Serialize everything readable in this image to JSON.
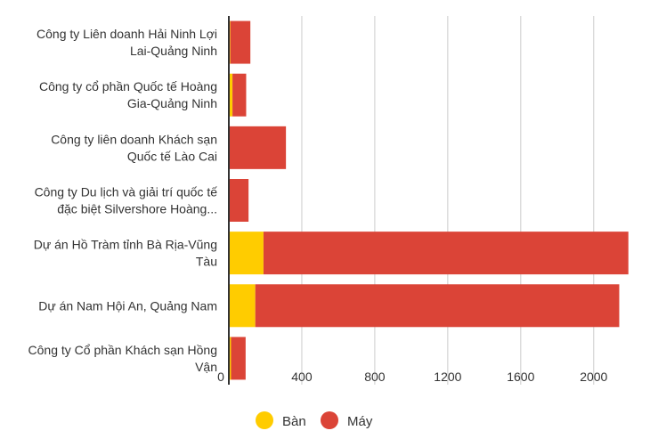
{
  "chart_data": {
    "type": "bar",
    "orientation": "horizontal",
    "stacked": true,
    "categories": [
      [
        "Công ty Liên doanh Hải Ninh Lợi",
        "Lai-Quảng Ninh"
      ],
      [
        "Công ty cổ phần Quốc tế Hoàng",
        "Gia-Quảng Ninh"
      ],
      [
        "Công ty liên doanh Khách sạn",
        "Quốc tế Lào Cai"
      ],
      [
        "Công ty Du lịch và giải trí quốc tế",
        "đặc biệt Silvershore Hoàng..."
      ],
      [
        "Dự án Hồ Tràm tỉnh Bà Rịa-Vũng",
        "Tàu"
      ],
      [
        "Dự án Nam Hội An, Quảng Nam"
      ],
      [
        "Công ty Cổ phần Khách sạn Hồng",
        "Vận"
      ]
    ],
    "series": [
      {
        "name": "Bàn",
        "color": "#FFCC00",
        "values": [
          8,
          20,
          3,
          4,
          190,
          145,
          12
        ]
      },
      {
        "name": "Máy",
        "color": "#DB4437",
        "values": [
          110,
          75,
          310,
          104,
          2000,
          1995,
          80
        ]
      }
    ],
    "xaxis": {
      "ticks": [
        0,
        400,
        800,
        1200,
        1600,
        2000
      ],
      "tick_labels": [
        "0",
        "400",
        "800",
        "1200",
        "1600",
        "2000"
      ],
      "range": [
        0,
        2250
      ]
    },
    "grid": true,
    "legend_position": "bottom"
  }
}
